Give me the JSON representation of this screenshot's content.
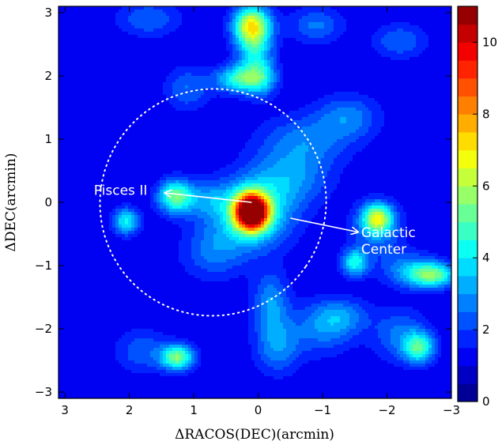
{
  "chart_data": {
    "type": "heatmap",
    "title": "",
    "xlabel": "ΔRACOS(DEC)(arcmin)",
    "ylabel": "ΔDEC(arcmin)",
    "xlim": [
      3.1,
      -3.0
    ],
    "ylim": [
      -3.1,
      3.1
    ],
    "x_ticks": [
      3,
      2,
      1,
      0,
      -1,
      -2,
      -3
    ],
    "y_ticks": [
      -3,
      -2,
      -1,
      0,
      1,
      2,
      3
    ],
    "x_tick_labels": [
      "3",
      "2",
      "1",
      "0",
      "−1",
      "−2",
      "−3"
    ],
    "y_tick_labels": [
      "−3",
      "−2",
      "−1",
      "0",
      "1",
      "2",
      "3"
    ],
    "colorbar": {
      "vmin": 0,
      "vmax": 11,
      "ticks": [
        0,
        2,
        4,
        6,
        8,
        10
      ],
      "tick_labels": [
        "0",
        "2",
        "4",
        "6",
        "8",
        "10"
      ],
      "levels": [
        0,
        0.5,
        1,
        1.5,
        2,
        2.5,
        3,
        3.5,
        4,
        4.5,
        5,
        5.5,
        6,
        6.5,
        7,
        7.5,
        8,
        8.5,
        9,
        9.5,
        10,
        10.5,
        11
      ],
      "colormap": "jet"
    },
    "background_value": 1.0,
    "sources": [
      {
        "x": 0.1,
        "y": -0.15,
        "peak": 10.8,
        "sx": 0.18,
        "sy": 0.2
      },
      {
        "x": 0.1,
        "y": -0.2,
        "peak": 3.2,
        "sx": 0.45,
        "sy": 0.38
      },
      {
        "x": 0.1,
        "y": 2.8,
        "peak": 5.5,
        "sx": 0.2,
        "sy": 0.22
      },
      {
        "x": 0.05,
        "y": 2.35,
        "peak": 2.5,
        "sx": 0.2,
        "sy": 0.3
      },
      {
        "x": 0.3,
        "y": 1.95,
        "peak": 3.4,
        "sx": 0.25,
        "sy": 0.15
      },
      {
        "x": -0.05,
        "y": 1.95,
        "peak": 2.0,
        "sx": 0.18,
        "sy": 0.2
      },
      {
        "x": 1.3,
        "y": 0.1,
        "peak": 3.6,
        "sx": 0.18,
        "sy": 0.18
      },
      {
        "x": 0.9,
        "y": 0.05,
        "peak": 1.6,
        "sx": 0.35,
        "sy": 0.2
      },
      {
        "x": -1.85,
        "y": -0.25,
        "peak": 4.4,
        "sx": 0.16,
        "sy": 0.16
      },
      {
        "x": -1.85,
        "y": -0.4,
        "peak": 1.8,
        "sx": 0.28,
        "sy": 0.28
      },
      {
        "x": -1.5,
        "y": -0.95,
        "peak": 3.3,
        "sx": 0.15,
        "sy": 0.15
      },
      {
        "x": -2.7,
        "y": -1.15,
        "peak": 4.2,
        "sx": 0.25,
        "sy": 0.14
      },
      {
        "x": -2.3,
        "y": -1.05,
        "peak": 1.7,
        "sx": 0.3,
        "sy": 0.2
      },
      {
        "x": -2.5,
        "y": -2.3,
        "peak": 3.5,
        "sx": 0.17,
        "sy": 0.17
      },
      {
        "x": -2.2,
        "y": -2.1,
        "peak": 1.6,
        "sx": 0.3,
        "sy": 0.3
      },
      {
        "x": 1.25,
        "y": -2.45,
        "peak": 4.4,
        "sx": 0.18,
        "sy": 0.14
      },
      {
        "x": 2.05,
        "y": -0.3,
        "peak": 3.1,
        "sx": 0.15,
        "sy": 0.15
      },
      {
        "x": -0.45,
        "y": 0.35,
        "peak": 1.8,
        "sx": 0.45,
        "sy": 0.3
      },
      {
        "x": -0.7,
        "y": 0.95,
        "peak": 1.7,
        "sx": 0.5,
        "sy": 0.3
      },
      {
        "x": -1.4,
        "y": 1.35,
        "peak": 1.7,
        "sx": 0.35,
        "sy": 0.25
      },
      {
        "x": 1.1,
        "y": 1.8,
        "peak": 1.5,
        "sx": 0.25,
        "sy": 0.25
      },
      {
        "x": 1.7,
        "y": 2.9,
        "peak": 1.5,
        "sx": 0.35,
        "sy": 0.2
      },
      {
        "x": -0.9,
        "y": 2.8,
        "peak": 1.6,
        "sx": 0.3,
        "sy": 0.2
      },
      {
        "x": -2.2,
        "y": 2.55,
        "peak": 1.5,
        "sx": 0.3,
        "sy": 0.2
      },
      {
        "x": -0.2,
        "y": -1.6,
        "peak": 2.0,
        "sx": 0.2,
        "sy": 0.35
      },
      {
        "x": -0.3,
        "y": -2.3,
        "peak": 1.8,
        "sx": 0.25,
        "sy": 0.3
      },
      {
        "x": -1.0,
        "y": -2.0,
        "peak": 1.6,
        "sx": 0.35,
        "sy": 0.3
      },
      {
        "x": 1.8,
        "y": -2.35,
        "peak": 1.4,
        "sx": 0.3,
        "sy": 0.25
      },
      {
        "x": 0.7,
        "y": -0.8,
        "peak": 1.5,
        "sx": 0.35,
        "sy": 0.3
      },
      {
        "x": -1.3,
        "y": -1.8,
        "peak": 1.5,
        "sx": 0.3,
        "sy": 0.2
      }
    ],
    "ellipse": {
      "cx": 0.7,
      "cy": 0.0,
      "rx": 1.75,
      "ry": 1.8,
      "angle_deg": 35
    },
    "annotations": [
      {
        "text": "Pisces II",
        "text_x": 2.55,
        "text_y": 0.12,
        "arrow_from": [
          0.1,
          0.0
        ],
        "arrow_to": [
          1.45,
          0.15
        ]
      },
      {
        "text": "Galactic",
        "text2": "Center",
        "text_x": -1.6,
        "text_y": -0.55,
        "arrow_from": [
          -0.5,
          -0.25
        ],
        "arrow_to": [
          -1.55,
          -0.47
        ]
      }
    ],
    "grid": false,
    "legend": "none"
  }
}
